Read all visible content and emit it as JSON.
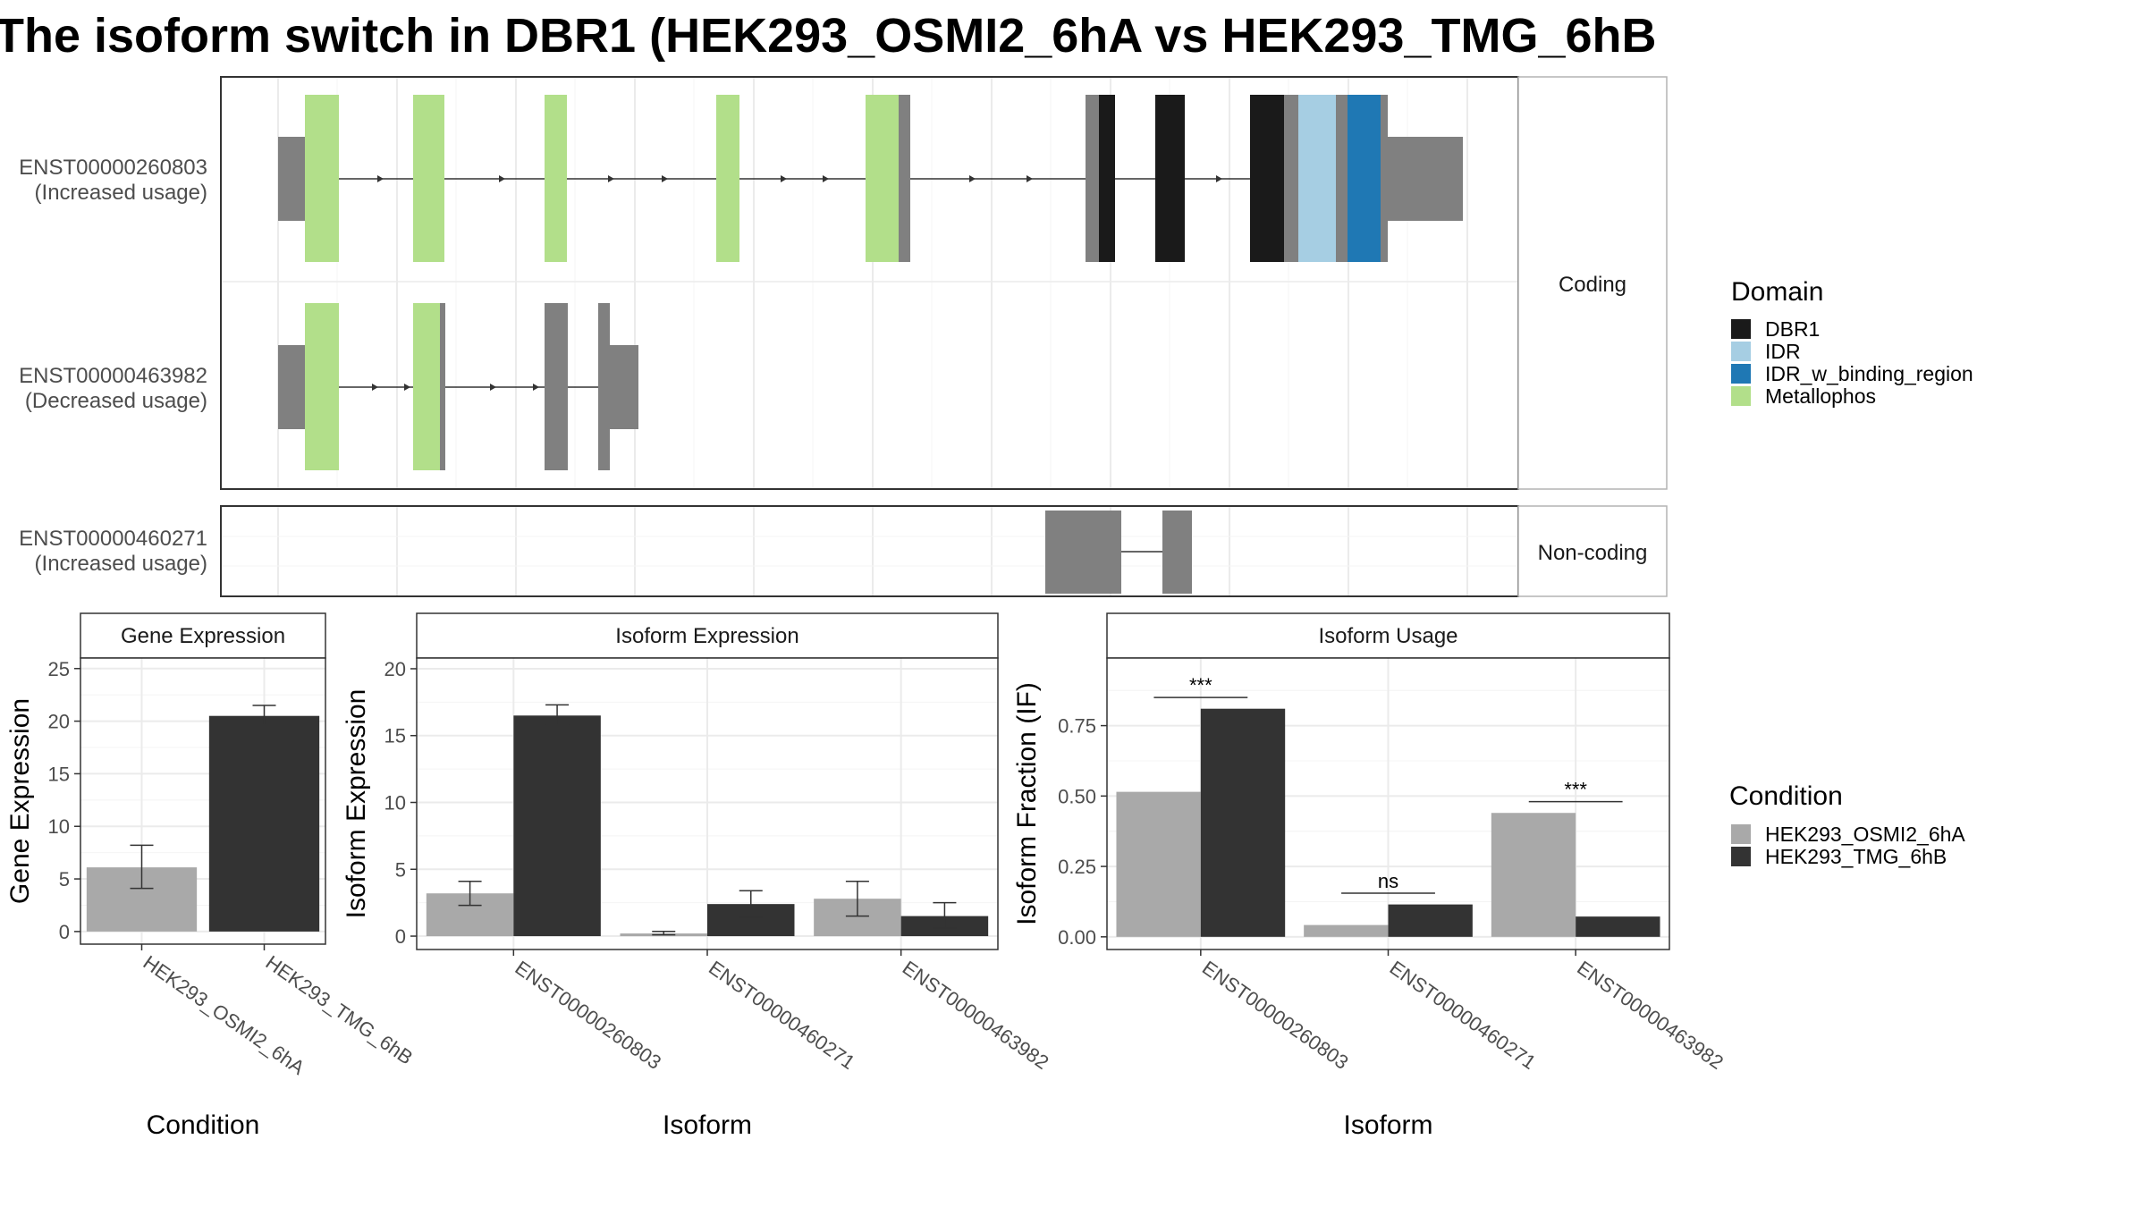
{
  "title": "The isoform switch in DBR1 (HEK293_OSMI2_6hA vs HEK293_TMG_6hB",
  "colors": {
    "DBR1": "#1a1a1a",
    "IDR": "#a6cee3",
    "IDR_w_binding_region": "#1f78b4",
    "Metallophos": "#b2df8a",
    "noncoding": "#808080",
    "cond_A": "#a9a9a9",
    "cond_B": "#333333"
  },
  "isoform_panel": {
    "coding_label": "Coding",
    "noncoding_label": "Non-coding",
    "transcripts": [
      {
        "id": "ENST00000260803",
        "usage": "(Increased usage)",
        "group": "coding"
      },
      {
        "id": "ENST00000463982",
        "usage": "(Decreased usage)",
        "group": "coding"
      },
      {
        "id": "ENST00000460271",
        "usage": "(Increased usage)",
        "group": "noncoding"
      }
    ]
  },
  "legend_domain": {
    "title": "Domain",
    "items": [
      "DBR1",
      "IDR",
      "IDR_w_binding_region",
      "Metallophos"
    ]
  },
  "legend_condition": {
    "title": "Condition",
    "items": [
      "HEK293_OSMI2_6hA",
      "HEK293_TMG_6hB"
    ]
  },
  "chart_data": [
    {
      "type": "bar",
      "title": "Gene Expression",
      "xlabel": "Condition",
      "ylabel": "Gene Expression",
      "categories": [
        "HEK293_OSMI2_6hA",
        "HEK293_TMG_6hB"
      ],
      "values": [
        6.1,
        20.5
      ],
      "errors": [
        [
          4.1,
          8.2
        ],
        [
          19.6,
          21.5
        ]
      ],
      "ylim": [
        -1.2,
        26
      ],
      "yticks": [
        0,
        5,
        10,
        15,
        20,
        25
      ],
      "grid": true
    },
    {
      "type": "bar",
      "title": "Isoform Expression",
      "xlabel": "Isoform",
      "ylabel": "Isoform Expression",
      "categories": [
        "ENST00000260803",
        "ENST00000460271",
        "ENST00000463982"
      ],
      "series": [
        {
          "name": "HEK293_OSMI2_6hA",
          "values": [
            3.2,
            0.2,
            2.8
          ],
          "errors": [
            [
              2.3,
              4.1
            ],
            [
              0.1,
              0.35
            ],
            [
              1.5,
              4.1
            ]
          ]
        },
        {
          "name": "HEK293_TMG_6hB",
          "values": [
            16.5,
            2.4,
            1.5
          ],
          "errors": [
            [
              15.8,
              17.3
            ],
            [
              1.4,
              3.4
            ],
            [
              0.6,
              2.5
            ]
          ]
        }
      ],
      "ylim": [
        -1,
        20.8
      ],
      "yticks": [
        0,
        5,
        10,
        15,
        20
      ],
      "grid": true
    },
    {
      "type": "bar",
      "title": "Isoform Usage",
      "xlabel": "Isoform",
      "ylabel": "Isoform Fraction (IF)",
      "categories": [
        "ENST00000260803",
        "ENST00000460271",
        "ENST00000463982"
      ],
      "series": [
        {
          "name": "HEK293_OSMI2_6hA",
          "values": [
            0.515,
            0.042,
            0.44
          ]
        },
        {
          "name": "HEK293_TMG_6hB",
          "values": [
            0.81,
            0.115,
            0.072
          ]
        }
      ],
      "significance": [
        {
          "label": "***",
          "y": 0.85
        },
        {
          "label": "ns",
          "y": 0.155
        },
        {
          "label": "***",
          "y": 0.48
        }
      ],
      "ylim": [
        -0.045,
        0.99
      ],
      "yticks": [
        0.0,
        0.25,
        0.5,
        0.75
      ],
      "ytick_labels": [
        "0.00",
        "0.25",
        "0.50",
        "0.75"
      ],
      "grid": true
    }
  ]
}
